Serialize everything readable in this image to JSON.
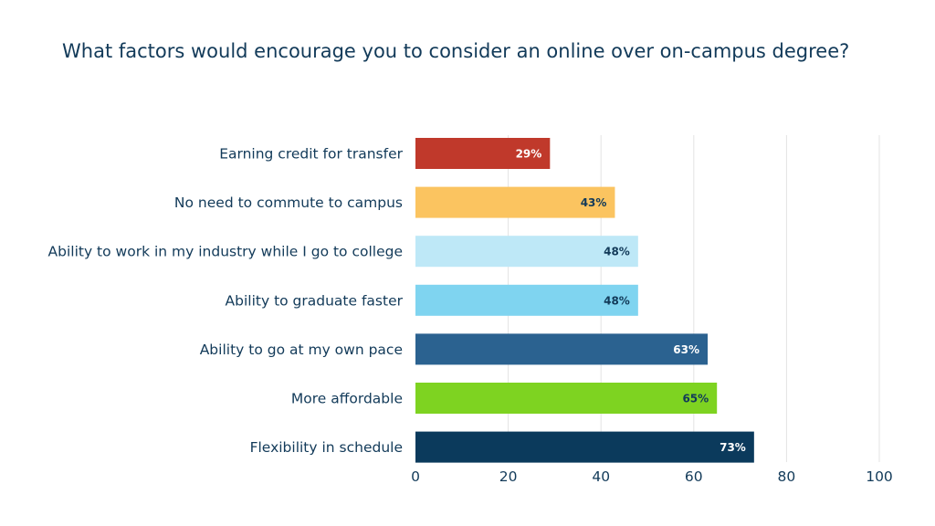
{
  "chart_data": {
    "type": "bar",
    "orientation": "horizontal",
    "title": "What factors would encourage you to consider an online over on-campus degree?",
    "categories": [
      "Earning credit for transfer",
      "No need to commute to campus",
      "Ability to work in my industry while I go to college",
      "Ability to graduate faster",
      "Ability to go at my own pace",
      "More affordable",
      "Flexibility in schedule"
    ],
    "values": [
      29,
      43,
      48,
      48,
      63,
      65,
      73
    ],
    "data_labels": [
      "29%",
      "43%",
      "48%",
      "48%",
      "63%",
      "65%",
      "73%"
    ],
    "bar_colors": [
      "#c0392b",
      "#fbc460",
      "#bee8f7",
      "#7fd4f0",
      "#2b6290",
      "#7ed321",
      "#0b3a5c"
    ],
    "data_label_colors": [
      "#ffffff",
      "#123a59",
      "#123a59",
      "#123a59",
      "#ffffff",
      "#123a59",
      "#ffffff"
    ],
    "xlim": [
      0,
      100
    ],
    "xticks": [
      0,
      20,
      40,
      60,
      80,
      100
    ],
    "xlabel": "",
    "ylabel": "",
    "grid": "vertical"
  }
}
